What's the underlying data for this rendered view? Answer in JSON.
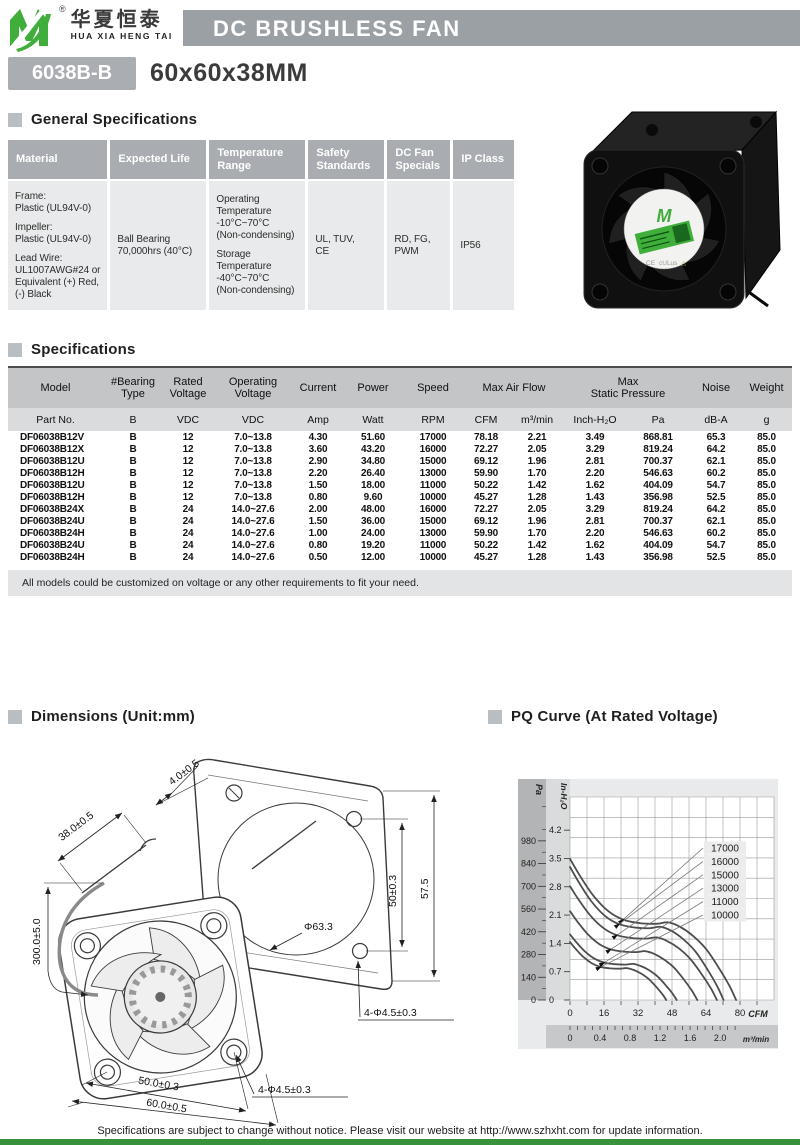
{
  "header": {
    "logo": {
      "m": "M",
      "reg": "®",
      "cn": "华夏恒泰",
      "en": "HUA XIA HENG TAI"
    },
    "banner": "DC BRUSHLESS FAN"
  },
  "product": {
    "model": "6038B-B",
    "size": "60x60x38MM"
  },
  "sections": {
    "general": "General Specifications",
    "specs": "Specifications",
    "dimensions": "Dimensions (Unit:mm)",
    "pq": "PQ Curve (At Rated Voltage)"
  },
  "general_table": {
    "columns": [
      {
        "header": "Material",
        "lines": [
          "Frame:",
          "Plastic (UL94V-0)",
          "",
          "Impeller:",
          "Plastic (UL94V-0)",
          "",
          "Lead Wire:",
          "UL1007AWG#24 or",
          "Equivalent (+) Red,",
          "(-) Black"
        ]
      },
      {
        "header": "Expected Life",
        "lines": [
          "Ball Bearing",
          "70,000hrs (40°C)"
        ]
      },
      {
        "header": "Temperature Range",
        "lines": [
          "Operating",
          "Temperature",
          "-10°C~70°C",
          "(Non-condensing)",
          "",
          "Storage",
          "Temperature",
          "-40°C~70°C",
          "(Non-condensing)"
        ]
      },
      {
        "header": "Safety Standards",
        "lines": [
          "UL, TUV,",
          "CE"
        ]
      },
      {
        "header": "DC Fan Specials",
        "lines": [
          "RD, FG,",
          "PWM"
        ]
      },
      {
        "header": "IP Class",
        "lines": [
          "IP56"
        ]
      }
    ]
  },
  "spec_table": {
    "group_header": [
      {
        "label": "Model",
        "span": 1
      },
      {
        "label": "#Bearing|Type",
        "span": 1
      },
      {
        "label": "Rated|Voltage",
        "span": 1
      },
      {
        "label": "Operating|Voltage",
        "span": 1
      },
      {
        "label": "Current",
        "span": 1
      },
      {
        "label": "Power",
        "span": 1
      },
      {
        "label": "Speed",
        "span": 1
      },
      {
        "label": "Max Air Flow",
        "span": 2
      },
      {
        "label": "Max|Static Pressure",
        "span": 2
      },
      {
        "label": "Noise",
        "span": 1
      },
      {
        "label": "Weight",
        "span": 1
      }
    ],
    "unit_header": [
      "Part No.",
      "B",
      "VDC",
      "VDC",
      "Amp",
      "Watt",
      "RPM",
      "CFM",
      "m³/min",
      "Inch-H₂O",
      "Pa",
      "dB-A",
      "g"
    ],
    "rows": [
      [
        "DF06038B12V",
        "B",
        "12",
        "7.0~13.8",
        "4.30",
        "51.60",
        "17000",
        "78.18",
        "2.21",
        "3.49",
        "868.81",
        "65.3",
        "85.0"
      ],
      [
        "DF06038B12X",
        "B",
        "12",
        "7.0~13.8",
        "3.60",
        "43.20",
        "16000",
        "72.27",
        "2.05",
        "3.29",
        "819.24",
        "64.2",
        "85.0"
      ],
      [
        "DF06038B12U",
        "B",
        "12",
        "7.0~13.8",
        "2.90",
        "34.80",
        "15000",
        "69.12",
        "1.96",
        "2.81",
        "700.37",
        "62.1",
        "85.0"
      ],
      [
        "DF06038B12H",
        "B",
        "12",
        "7.0~13.8",
        "2.20",
        "26.40",
        "13000",
        "59.90",
        "1.70",
        "2.20",
        "546.63",
        "60.2",
        "85.0"
      ],
      [
        "DF06038B12U",
        "B",
        "12",
        "7.0~13.8",
        "1.50",
        "18.00",
        "11000",
        "50.22",
        "1.42",
        "1.62",
        "404.09",
        "54.7",
        "85.0"
      ],
      [
        "DF06038B12H",
        "B",
        "12",
        "7.0~13.8",
        "0.80",
        "9.60",
        "10000",
        "45.27",
        "1.28",
        "1.43",
        "356.98",
        "52.5",
        "85.0"
      ],
      [
        "DF06038B24X",
        "B",
        "24",
        "14.0~27.6",
        "2.00",
        "48.00",
        "16000",
        "72.27",
        "2.05",
        "3.29",
        "819.24",
        "64.2",
        "85.0"
      ],
      [
        "DF06038B24U",
        "B",
        "24",
        "14.0~27.6",
        "1.50",
        "36.00",
        "15000",
        "69.12",
        "1.96",
        "2.81",
        "700.37",
        "62.1",
        "85.0"
      ],
      [
        "DF06038B24H",
        "B",
        "24",
        "14.0~27.6",
        "1.00",
        "24.00",
        "13000",
        "59.90",
        "1.70",
        "2.20",
        "546.63",
        "60.2",
        "85.0"
      ],
      [
        "DF06038B24U",
        "B",
        "24",
        "14.0~27.6",
        "0.80",
        "19.20",
        "11000",
        "50.22",
        "1.42",
        "1.62",
        "404.09",
        "54.7",
        "85.0"
      ],
      [
        "DF06038B24H",
        "B",
        "24",
        "14.0~27.6",
        "0.50",
        "12.00",
        "10000",
        "45.27",
        "1.28",
        "1.43",
        "356.98",
        "52.5",
        "85.0"
      ]
    ],
    "note": "All models could be customized on voltage or any other requirements to fit your need."
  },
  "dimensions": {
    "labels": {
      "depth": "38.0±0.5",
      "flange_thickness": "4.0±0.5",
      "lead_wire": "300.0±5.0",
      "opening_diameter": "Φ63.3",
      "hole_pitch_vertical": "50±0.3",
      "flange_height": "57.5",
      "holes_flange": "4-Φ4.5±0.3",
      "holes_frame": "4-Φ4.5±0.3",
      "hole_pitch_horizontal": "50.0±0.3",
      "frame_width": "60.0±0.5"
    }
  },
  "chart_data": {
    "type": "line",
    "title": "PQ Curve (At Rated Voltage)",
    "x_axis": {
      "label": "CFM",
      "ticks": [
        0,
        16,
        32,
        48,
        64,
        80
      ],
      "max": 96,
      "grid_step": 8
    },
    "x_axis2": {
      "label": "m³/min",
      "ticks": [
        0,
        0.4,
        0.8,
        1.2,
        1.6,
        2.0
      ],
      "cfm_per_unit": 35.315
    },
    "y_axis": {
      "label": "Pa",
      "ticks": [
        0,
        140,
        280,
        420,
        560,
        700,
        840,
        980
      ],
      "max": 1250
    },
    "y_axis2": {
      "label": "In-H₂O",
      "ticks": [
        0,
        0.7,
        1.4,
        2.1,
        2.8,
        3.5,
        4.2
      ],
      "pa_per_unit": 249
    },
    "grid": true,
    "legend_position": "top-right",
    "series": [
      {
        "name": "17000",
        "max_pressure_pa": 868.81,
        "max_flow_cfm": 78.18
      },
      {
        "name": "16000",
        "max_pressure_pa": 819.24,
        "max_flow_cfm": 72.27
      },
      {
        "name": "15000",
        "max_pressure_pa": 700.37,
        "max_flow_cfm": 69.12
      },
      {
        "name": "13000",
        "max_pressure_pa": 546.63,
        "max_flow_cfm": 59.9
      },
      {
        "name": "11000",
        "max_pressure_pa": 404.09,
        "max_flow_cfm": 50.22
      },
      {
        "name": "10000",
        "max_pressure_pa": 356.98,
        "max_flow_cfm": 45.27
      }
    ],
    "curve_shape": [
      [
        0,
        1
      ],
      [
        0.06,
        0.88
      ],
      [
        0.14,
        0.74
      ],
      [
        0.23,
        0.63
      ],
      [
        0.32,
        0.57
      ],
      [
        0.42,
        0.545
      ],
      [
        0.52,
        0.54
      ],
      [
        0.59,
        0.55
      ],
      [
        0.66,
        0.52
      ],
      [
        0.74,
        0.455
      ],
      [
        0.82,
        0.36
      ],
      [
        0.9,
        0.22
      ],
      [
        0.96,
        0.1
      ],
      [
        1,
        0
      ]
    ]
  },
  "footer": {
    "note": "Specifications are subject to change without notice. Please visit our website at http://www.szhxht.com for update information."
  },
  "colors": {
    "brand_green": "#3fae3b",
    "banner_gray": "#9aa0a4",
    "header_gray": "#a9adb1",
    "spec_header_gray": "#c4c5c7",
    "curve_gray": "#4d4d4d",
    "footer_bar_green": "#38923c"
  }
}
